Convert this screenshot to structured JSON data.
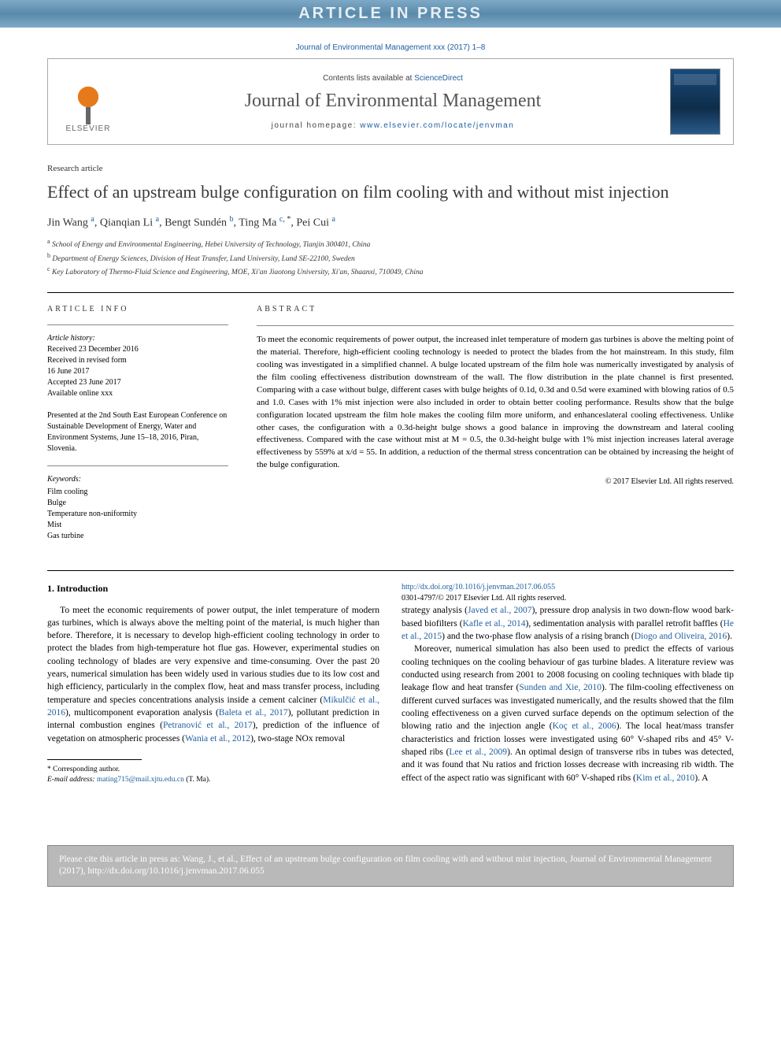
{
  "banner": "ARTICLE IN PRESS",
  "citation_top": "Journal of Environmental Management xxx (2017) 1–8",
  "header": {
    "contents_prefix": "Contents lists available at ",
    "contents_link": "ScienceDirect",
    "journal_name": "Journal of Environmental Management",
    "homepage_prefix": "journal homepage: ",
    "homepage_url": "www.elsevier.com/locate/jenvman",
    "publisher": "ELSEVIER"
  },
  "article_type": "Research article",
  "title": "Effect of an upstream bulge configuration on film cooling with and without mist injection",
  "authors": [
    {
      "name": "Jin Wang",
      "aff": "a"
    },
    {
      "name": "Qianqian Li",
      "aff": "a"
    },
    {
      "name": "Bengt Sundén",
      "aff": "b"
    },
    {
      "name": "Ting Ma",
      "aff": "c",
      "corr": true
    },
    {
      "name": "Pei Cui",
      "aff": "a"
    }
  ],
  "affiliations": {
    "a": "School of Energy and Environmental Engineering, Hebei University of Technology, Tianjin 300401, China",
    "b": "Department of Energy Sciences, Division of Heat Transfer, Lund University, Lund SE-22100, Sweden",
    "c": "Key Laboratory of Thermo-Fluid Science and Engineering, MOE, Xi'an Jiaotong University, Xi'an, Shaanxi, 710049, China"
  },
  "article_info": {
    "label": "ARTICLE INFO",
    "history_label": "Article history:",
    "received": "Received 23 December 2016",
    "revised1": "Received in revised form",
    "revised2": "16 June 2017",
    "accepted": "Accepted 23 June 2017",
    "online": "Available online xxx",
    "conference": "Presented at the 2nd South East European Conference on Sustainable Development of Energy, Water and Environment Systems, June 15–18, 2016, Piran, Slovenia.",
    "keywords_label": "Keywords:",
    "keywords": [
      "Film cooling",
      "Bulge",
      "Temperature non-uniformity",
      "Mist",
      "Gas turbine"
    ]
  },
  "abstract": {
    "label": "ABSTRACT",
    "text": "To meet the economic requirements of power output, the increased inlet temperature of modern gas turbines is above the melting point of the material. Therefore, high-efficient cooling technology is needed to protect the blades from the hot mainstream. In this study, film cooling was investigated in a simplified channel. A bulge located upstream of the film hole was numerically investigated by analysis of the film cooling effectiveness distribution downstream of the wall. The flow distribution in the plate channel is first presented. Comparing with a case without bulge, different cases with bulge heights of 0.1d, 0.3d and 0.5d were examined with blowing ratios of 0.5 and 1.0. Cases with 1% mist injection were also included in order to obtain better cooling performance. Results show that the bulge configuration located upstream the film hole makes the cooling film more uniform, and enhanceslateral cooling effectiveness. Unlike other cases, the configuration with a 0.3d-height bulge shows a good balance in improving the downstream and lateral cooling effectiveness. Compared with the case without mist at M = 0.5, the 0.3d-height bulge with 1% mist injection increases lateral average effectiveness by 559% at x/d = 55. In addition, a reduction of the thermal stress concentration can be obtained by increasing the height of the bulge configuration.",
    "copyright": "© 2017 Elsevier Ltd. All rights reserved."
  },
  "body": {
    "section1_head": "1. Introduction",
    "para1a": "To meet the economic requirements of power output, the inlet temperature of modern gas turbines, which is always above the melting point of the material, is much higher than before. Therefore, it is necessary to develop high-efficient cooling technology in order to protect the blades from high-temperature hot flue gas. However, experimental studies on cooling technology of blades are very expensive and time-consuming. Over the past 20 years, numerical simulation has been widely used in various studies due to its low cost and high efficiency, particularly in the complex flow, heat and mass transfer process, including temperature and species concentrations analysis inside a cement calciner (",
    "ref1": "Mikulčić et al., 2016",
    "para1b": "), multicomponent evaporation analysis (",
    "ref2": "Baleta et al., 2017",
    "para1c": "), pollutant prediction in internal combustion engines (",
    "ref3": "Petranović et al., 2017",
    "para1d": "), prediction of the influence of vegetation on atmospheric processes (",
    "ref4": "Wania et al., 2012",
    "para1e": "), two-stage NOx removal ",
    "para2a": "strategy analysis (",
    "ref5": "Javed et al., 2007",
    "para2b": "), pressure drop analysis in two down-flow wood bark-based biofilters (",
    "ref6": "Kafle et al., 2014",
    "para2c": "), sedimentation analysis with parallel retrofit baffles (",
    "ref7": "He et al., 2015",
    "para2d": ") and the two-phase flow analysis of a rising branch (",
    "ref8": "Diogo and Oliveira, 2016",
    "para2e": ").",
    "para3a": "Moreover, numerical simulation has also been used to predict the effects of various cooling techniques on the cooling behaviour of gas turbine blades. A literature review was conducted using research from 2001 to 2008 focusing on cooling techniques with blade tip leakage flow and heat transfer (",
    "ref9": "Sunden and Xie, 2010",
    "para3b": "). The film-cooling effectiveness on different curved surfaces was investigated numerically, and the results showed that the film cooling effectiveness on a given curved surface depends on the optimum selection of the blowing ratio and the injection angle (",
    "ref10": "Koç et al., 2006",
    "para3c": "). The local heat/mass transfer characteristics and friction losses were investigated using 60° V-shaped ribs and 45° V-shaped ribs (",
    "ref11": "Lee et al., 2009",
    "para3d": "). An optimal design of transverse ribs in tubes was detected, and it was found that Nu ratios and friction losses decrease with increasing rib width. The effect of the aspect ratio was significant with 60° V-shaped ribs (",
    "ref12": "Kim et al., 2010",
    "para3e": "). A"
  },
  "footnotes": {
    "corr": "* Corresponding author.",
    "email_label": "E-mail address: ",
    "email": "mating715@mail.xjtu.edu.cn",
    "email_name": " (T. Ma)."
  },
  "doi": {
    "url": "http://dx.doi.org/10.1016/j.jenvman.2017.06.055",
    "issn": "0301-4797/© 2017 Elsevier Ltd. All rights reserved."
  },
  "cite_box": "Please cite this article in press as: Wang, J., et al., Effect of an upstream bulge configuration on film cooling with and without mist injection, Journal of Environmental Management (2017), http://dx.doi.org/10.1016/j.jenvman.2017.06.055"
}
